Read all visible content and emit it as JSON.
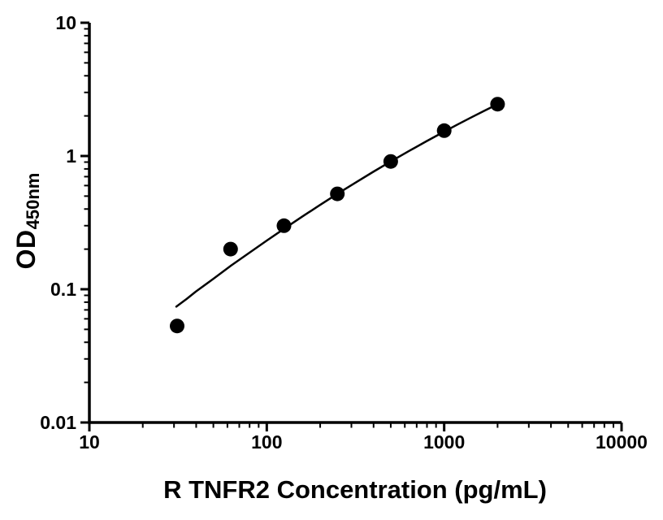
{
  "chart_data": {
    "type": "scatter",
    "title": "",
    "x_axis": {
      "label": "R TNFR2 Concentration (pg/mL)",
      "scale": "log",
      "min": 10,
      "max": 10000,
      "major_ticks": [
        10,
        100,
        1000,
        10000
      ],
      "tick_labels": [
        "10",
        "100",
        "1000",
        "10000"
      ]
    },
    "y_axis": {
      "label_main": "OD",
      "label_sub": "450nm",
      "scale": "log",
      "min": 0.01,
      "max": 10,
      "major_ticks": [
        0.01,
        0.1,
        1,
        10
      ],
      "tick_labels": [
        "0.01",
        "0.1",
        "1",
        "10"
      ]
    },
    "points": {
      "x": [
        31.25,
        62.5,
        125,
        250,
        500,
        1000,
        2000
      ],
      "y": [
        0.053,
        0.2,
        0.3,
        0.52,
        0.91,
        1.55,
        2.45
      ]
    },
    "fit_curve": [
      [
        30.9,
        0.074
      ],
      [
        35.5,
        0.085
      ],
      [
        39.8,
        0.096
      ],
      [
        50.1,
        0.12
      ],
      [
        63.1,
        0.151
      ],
      [
        79.4,
        0.187
      ],
      [
        100,
        0.232
      ],
      [
        125.9,
        0.286
      ],
      [
        158.5,
        0.351
      ],
      [
        199.5,
        0.429
      ],
      [
        251,
        0.522
      ],
      [
        316.2,
        0.631
      ],
      [
        398,
        0.76
      ],
      [
        501.2,
        0.911
      ],
      [
        631,
        1.086
      ],
      [
        794.3,
        1.289
      ],
      [
        1000,
        1.524
      ],
      [
        1188.5,
        1.721
      ],
      [
        1413,
        1.939
      ],
      [
        1678.8,
        2.179
      ],
      [
        2000,
        2.446
      ]
    ],
    "marker": {
      "shape": "circle",
      "color": "#000000",
      "radius": 9
    },
    "line_color": "#000000",
    "axis_color": "#000000",
    "grid": false,
    "legend": false
  }
}
